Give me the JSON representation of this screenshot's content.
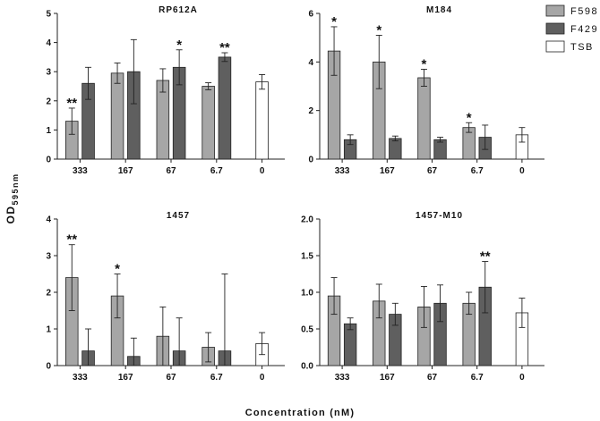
{
  "figure": {
    "ylabel_main": "OD",
    "ylabel_sub": "595nm",
    "xlabel": "Concentration (nM)"
  },
  "legend": [
    {
      "name": "F598",
      "color": "#a6a6a6"
    },
    {
      "name": "F429",
      "color": "#5f5f5f"
    },
    {
      "name": "TSB",
      "color": "#ffffff"
    }
  ],
  "chart_data": [
    {
      "type": "bar",
      "title": "RP612A",
      "categories": [
        "333",
        "167",
        "67",
        "6.7",
        "0"
      ],
      "ylim": [
        0,
        5
      ],
      "yticks": [
        0,
        1,
        2,
        3,
        4,
        5
      ],
      "ytick_labels": [
        "0",
        "1",
        "2",
        "3",
        "4",
        "5"
      ],
      "series": [
        {
          "name": "F598",
          "values": [
            1.3,
            2.95,
            2.7,
            2.5,
            null
          ],
          "errors": [
            0.45,
            0.35,
            0.4,
            0.12,
            null
          ],
          "stars": [
            "**",
            "",
            "",
            "",
            ""
          ]
        },
        {
          "name": "F429",
          "values": [
            2.6,
            3.0,
            3.15,
            3.5,
            null
          ],
          "errors": [
            0.55,
            1.1,
            0.6,
            0.15,
            null
          ],
          "stars": [
            "",
            "",
            "*",
            "**",
            ""
          ]
        },
        {
          "name": "TSB",
          "values": [
            null,
            null,
            null,
            null,
            2.65
          ],
          "errors": [
            null,
            null,
            null,
            null,
            0.25
          ],
          "stars": [
            "",
            "",
            "",
            "",
            ""
          ]
        }
      ]
    },
    {
      "type": "bar",
      "title": "M184",
      "categories": [
        "333",
        "167",
        "67",
        "6.7",
        "0"
      ],
      "ylim": [
        0,
        6
      ],
      "yticks": [
        0,
        2,
        4,
        6
      ],
      "ytick_labels": [
        "0",
        "2",
        "4",
        "6"
      ],
      "series": [
        {
          "name": "F598",
          "values": [
            4.45,
            4.0,
            3.35,
            1.3,
            null
          ],
          "errors": [
            1.0,
            1.1,
            0.35,
            0.2,
            null
          ],
          "stars": [
            "*",
            "*",
            "*",
            "*",
            ""
          ]
        },
        {
          "name": "F429",
          "values": [
            0.8,
            0.85,
            0.8,
            0.9,
            null
          ],
          "errors": [
            0.2,
            0.1,
            0.1,
            0.5,
            null
          ],
          "stars": [
            "",
            "",
            "",
            "",
            ""
          ]
        },
        {
          "name": "TSB",
          "values": [
            null,
            null,
            null,
            null,
            1.0
          ],
          "errors": [
            null,
            null,
            null,
            null,
            0.3
          ],
          "stars": [
            "",
            "",
            "",
            "",
            ""
          ]
        }
      ]
    },
    {
      "type": "bar",
      "title": "1457",
      "categories": [
        "333",
        "167",
        "67",
        "6.7",
        "0"
      ],
      "ylim": [
        0,
        4
      ],
      "yticks": [
        0,
        1,
        2,
        3,
        4
      ],
      "ytick_labels": [
        "0",
        "1",
        "2",
        "3",
        "4"
      ],
      "series": [
        {
          "name": "F598",
          "values": [
            2.4,
            1.9,
            0.8,
            0.5,
            null
          ],
          "errors": [
            0.9,
            0.6,
            0.8,
            0.4,
            null
          ],
          "stars": [
            "**",
            "*",
            "",
            "",
            ""
          ]
        },
        {
          "name": "F429",
          "values": [
            0.4,
            0.25,
            0.4,
            0.4,
            null
          ],
          "errors": [
            0.6,
            0.5,
            0.9,
            2.1,
            null
          ],
          "stars": [
            "",
            "",
            "",
            "",
            ""
          ]
        },
        {
          "name": "TSB",
          "values": [
            null,
            null,
            null,
            null,
            0.6
          ],
          "errors": [
            null,
            null,
            null,
            null,
            0.3
          ],
          "stars": [
            "",
            "",
            "",
            "",
            ""
          ]
        }
      ]
    },
    {
      "type": "bar",
      "title": "1457-M10",
      "categories": [
        "333",
        "167",
        "67",
        "6.7",
        "0"
      ],
      "ylim": [
        0,
        2
      ],
      "yticks": [
        0,
        0.5,
        1,
        1.5,
        2
      ],
      "ytick_labels": [
        "0.0",
        "0.5",
        "1.0",
        "1.5",
        "2.0"
      ],
      "series": [
        {
          "name": "F598",
          "values": [
            0.95,
            0.88,
            0.8,
            0.85,
            null
          ],
          "errors": [
            0.25,
            0.23,
            0.28,
            0.15,
            null
          ],
          "stars": [
            "",
            "",
            "",
            "",
            ""
          ]
        },
        {
          "name": "F429",
          "values": [
            0.57,
            0.7,
            0.85,
            1.07,
            null
          ],
          "errors": [
            0.08,
            0.15,
            0.25,
            0.35,
            null
          ],
          "stars": [
            "",
            "",
            "",
            "**",
            ""
          ]
        },
        {
          "name": "TSB",
          "values": [
            null,
            null,
            null,
            null,
            0.72
          ],
          "errors": [
            null,
            null,
            null,
            null,
            0.2
          ],
          "stars": [
            "",
            "",
            "",
            "",
            ""
          ]
        }
      ]
    }
  ]
}
